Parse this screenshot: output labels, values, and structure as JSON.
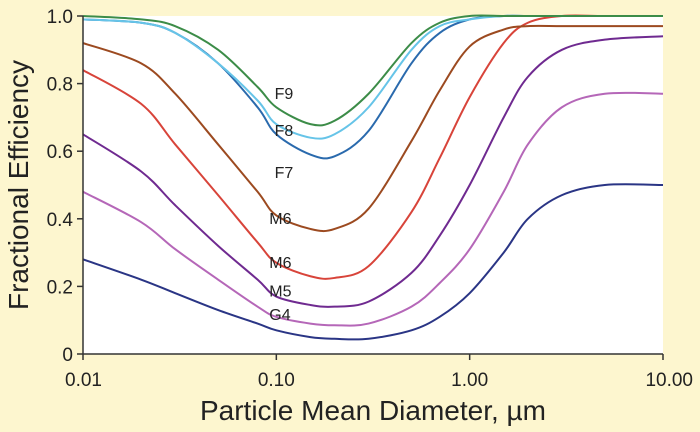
{
  "chart_data": {
    "type": "line",
    "title": "",
    "xlabel": "Particle Mean Diameter, µm",
    "ylabel": "Fractional Efficiency",
    "x_scale": "log",
    "xlim": [
      0.01,
      10
    ],
    "ylim": [
      0,
      1.0
    ],
    "x_ticks": [
      "0.01",
      "0.10",
      "1.00",
      "10.00"
    ],
    "y_ticks": [
      "0",
      "0.2",
      "0.4",
      "0.6",
      "0.8",
      "1.0"
    ],
    "grid": false,
    "legend": "none",
    "series": [
      {
        "name": "G4",
        "color": "#2a3585",
        "x": [
          0.01,
          0.02,
          0.03,
          0.05,
          0.08,
          0.1,
          0.15,
          0.2,
          0.3,
          0.5,
          0.7,
          1.0,
          1.5,
          2.0,
          3.0,
          5.0,
          10.0
        ],
        "y": [
          0.28,
          0.22,
          0.18,
          0.13,
          0.09,
          0.07,
          0.05,
          0.045,
          0.045,
          0.07,
          0.11,
          0.18,
          0.3,
          0.4,
          0.47,
          0.5,
          0.5
        ]
      },
      {
        "name": "M5",
        "color": "#b567b8",
        "x": [
          0.01,
          0.02,
          0.03,
          0.05,
          0.08,
          0.1,
          0.15,
          0.2,
          0.3,
          0.5,
          0.7,
          1.0,
          1.5,
          2.0,
          3.0,
          5.0,
          10.0
        ],
        "y": [
          0.48,
          0.39,
          0.31,
          0.22,
          0.14,
          0.11,
          0.09,
          0.085,
          0.09,
          0.14,
          0.21,
          0.31,
          0.48,
          0.62,
          0.73,
          0.77,
          0.77
        ]
      },
      {
        "name": "M6",
        "color": "#6f2a90",
        "x": [
          0.01,
          0.02,
          0.03,
          0.05,
          0.08,
          0.1,
          0.15,
          0.2,
          0.3,
          0.5,
          0.7,
          1.0,
          1.5,
          2.0,
          3.0,
          5.0,
          10.0
        ],
        "y": [
          0.65,
          0.54,
          0.44,
          0.32,
          0.22,
          0.17,
          0.145,
          0.14,
          0.155,
          0.24,
          0.35,
          0.5,
          0.7,
          0.82,
          0.9,
          0.93,
          0.94
        ]
      },
      {
        "name": "M6",
        "color": "#d8443a",
        "x": [
          0.01,
          0.02,
          0.03,
          0.05,
          0.08,
          0.1,
          0.15,
          0.2,
          0.3,
          0.5,
          0.7,
          1.0,
          1.5,
          2.0,
          3.0,
          5.0,
          10.0
        ],
        "y": [
          0.84,
          0.74,
          0.62,
          0.47,
          0.33,
          0.27,
          0.23,
          0.225,
          0.26,
          0.42,
          0.58,
          0.76,
          0.92,
          0.98,
          1.0,
          1.0,
          1.0
        ]
      },
      {
        "name": "F7",
        "color": "#9c4a20",
        "x": [
          0.01,
          0.02,
          0.03,
          0.05,
          0.08,
          0.1,
          0.15,
          0.2,
          0.3,
          0.5,
          0.7,
          1.0,
          1.5,
          2.0,
          3.0,
          5.0,
          10.0
        ],
        "y": [
          0.92,
          0.86,
          0.77,
          0.62,
          0.48,
          0.41,
          0.37,
          0.37,
          0.43,
          0.63,
          0.78,
          0.91,
          0.96,
          0.97,
          0.97,
          0.97,
          0.97
        ]
      },
      {
        "name": "F8",
        "color": "#2a6aad",
        "x": [
          0.01,
          0.02,
          0.03,
          0.05,
          0.08,
          0.1,
          0.15,
          0.2,
          0.3,
          0.5,
          0.7,
          1.0,
          1.5,
          2.0,
          3.0,
          5.0,
          10.0
        ],
        "y": [
          0.99,
          0.98,
          0.95,
          0.86,
          0.73,
          0.65,
          0.59,
          0.585,
          0.66,
          0.86,
          0.95,
          0.99,
          1.0,
          1.0,
          1.0,
          1.0,
          1.0
        ]
      },
      {
        "name": "F8",
        "color": "#66c4e8",
        "x": [
          0.01,
          0.02,
          0.03,
          0.05,
          0.08,
          0.1,
          0.15,
          0.2,
          0.3,
          0.5,
          0.7,
          1.0,
          1.5,
          2.0,
          3.0,
          5.0,
          10.0
        ],
        "y": [
          0.99,
          0.98,
          0.95,
          0.86,
          0.75,
          0.68,
          0.64,
          0.65,
          0.73,
          0.9,
          0.97,
          0.99,
          1.0,
          1.0,
          1.0,
          1.0,
          1.0
        ]
      },
      {
        "name": "F9",
        "color": "#3c8c48",
        "x": [
          0.01,
          0.02,
          0.03,
          0.05,
          0.08,
          0.1,
          0.15,
          0.2,
          0.3,
          0.5,
          0.7,
          1.0,
          1.5,
          2.0,
          3.0,
          5.0,
          10.0
        ],
        "y": [
          1.0,
          0.99,
          0.97,
          0.9,
          0.79,
          0.73,
          0.68,
          0.69,
          0.77,
          0.92,
          0.98,
          1.0,
          1.0,
          1.0,
          1.0,
          1.0,
          1.0
        ]
      }
    ],
    "annotations": [
      {
        "text": "F9",
        "x": 0.098,
        "y": 0.755
      },
      {
        "text": "F8",
        "x": 0.098,
        "y": 0.645
      },
      {
        "text": "F7",
        "x": 0.098,
        "y": 0.52
      },
      {
        "text": "M6",
        "x": 0.092,
        "y": 0.385
      },
      {
        "text": "M6",
        "x": 0.092,
        "y": 0.255
      },
      {
        "text": "M5",
        "x": 0.092,
        "y": 0.17
      },
      {
        "text": "G4",
        "x": 0.092,
        "y": 0.1
      }
    ]
  }
}
